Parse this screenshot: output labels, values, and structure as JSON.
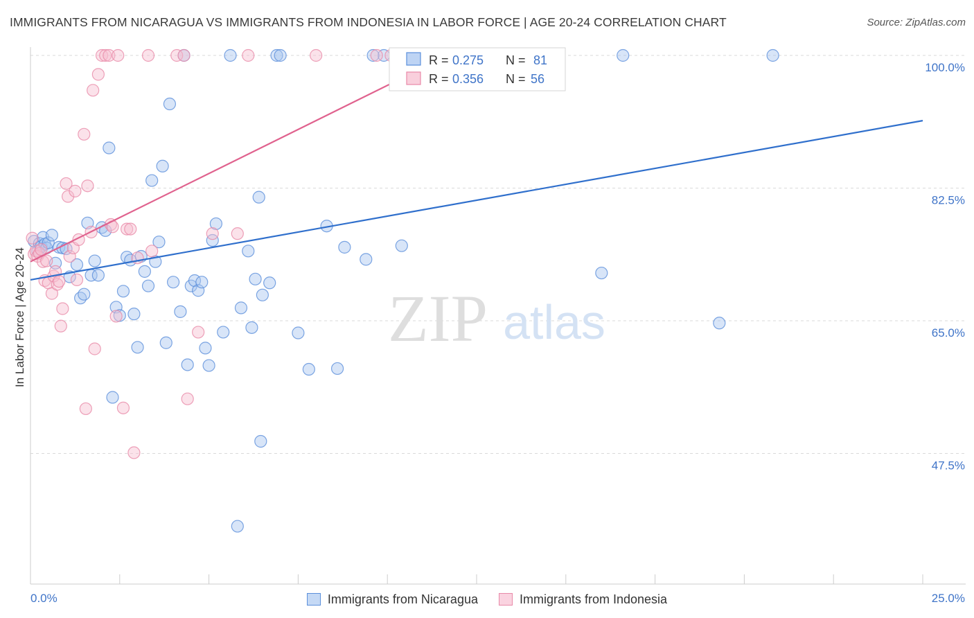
{
  "header": {
    "title": "IMMIGRANTS FROM NICARAGUA VS IMMIGRANTS FROM INDONESIA IN LABOR FORCE | AGE 20-24 CORRELATION CHART",
    "source": "Source: ZipAtlas.com"
  },
  "watermark": {
    "zip": "ZIP",
    "atlas": "atlas"
  },
  "legend": {
    "r_label": "R =",
    "n_label": "N =",
    "entries": [
      {
        "r": "0.275",
        "n": "81"
      },
      {
        "r": "0.356",
        "n": "56"
      }
    ]
  },
  "colors": {
    "series_blue_fill": "#a8c6f0",
    "series_blue_stroke": "#5b8fdb",
    "series_blue_line": "#2f6fcc",
    "series_pink_fill": "#f7bfd0",
    "series_pink_stroke": "#e889a8",
    "series_pink_line": "#e0628e",
    "tick_label": "#3f74c8",
    "grid": "#d9d9d9"
  },
  "chart_data": {
    "type": "scatter",
    "title": "IMMIGRANTS FROM NICARAGUA VS IMMIGRANTS FROM INDONESIA IN LABOR FORCE | AGE 20-24 CORRELATION CHART",
    "ylabel": "In Labor Force | Age 20-24",
    "xlabel": "",
    "xlim": [
      0,
      25
    ],
    "ylim": [
      34,
      102
    ],
    "x_tick_labels": [
      "0.0%",
      "25.0%"
    ],
    "y_ticks": [
      100.0,
      82.5,
      65.0,
      47.5
    ],
    "y_tick_labels": [
      "100.0%",
      "82.5%",
      "65.0%",
      "47.5%"
    ],
    "grid": true,
    "series": [
      {
        "name": "Immigrants from Nicaragua",
        "color": "blue",
        "r": 0.275,
        "n": 81,
        "trend": {
          "x": [
            0,
            25
          ],
          "y": [
            70.4,
            91.4
          ]
        },
        "points": [
          [
            0.1,
            75.5
          ],
          [
            0.2,
            74.2
          ],
          [
            0.25,
            75.2
          ],
          [
            0.3,
            74.8
          ],
          [
            0.35,
            76.0
          ],
          [
            0.4,
            75.1
          ],
          [
            0.45,
            74.6
          ],
          [
            0.5,
            75.3
          ],
          [
            0.6,
            76.3
          ],
          [
            0.7,
            72.6
          ],
          [
            0.8,
            74.7
          ],
          [
            0.9,
            74.6
          ],
          [
            1.0,
            74.5
          ],
          [
            1.1,
            70.8
          ],
          [
            1.3,
            72.4
          ],
          [
            1.4,
            68.0
          ],
          [
            1.5,
            68.5
          ],
          [
            1.6,
            77.9
          ],
          [
            1.7,
            71.0
          ],
          [
            1.8,
            72.9
          ],
          [
            1.9,
            71.0
          ],
          [
            2.0,
            77.3
          ],
          [
            2.1,
            76.9
          ],
          [
            2.2,
            87.8
          ],
          [
            2.3,
            54.9
          ],
          [
            2.4,
            66.8
          ],
          [
            2.5,
            65.7
          ],
          [
            2.6,
            68.9
          ],
          [
            2.7,
            73.4
          ],
          [
            2.8,
            73.0
          ],
          [
            2.9,
            65.9
          ],
          [
            3.0,
            61.5
          ],
          [
            3.1,
            73.5
          ],
          [
            3.2,
            71.5
          ],
          [
            3.3,
            69.6
          ],
          [
            3.4,
            83.5
          ],
          [
            3.5,
            72.8
          ],
          [
            3.6,
            75.4
          ],
          [
            3.7,
            85.4
          ],
          [
            3.8,
            62.1
          ],
          [
            3.9,
            93.6
          ],
          [
            4.0,
            70.1
          ],
          [
            4.2,
            66.2
          ],
          [
            4.3,
            100.0
          ],
          [
            4.4,
            59.2
          ],
          [
            4.5,
            69.6
          ],
          [
            4.6,
            70.3
          ],
          [
            4.7,
            69.0
          ],
          [
            4.8,
            70.1
          ],
          [
            4.9,
            61.4
          ],
          [
            5.0,
            59.1
          ],
          [
            5.1,
            75.6
          ],
          [
            5.2,
            77.8
          ],
          [
            5.4,
            63.5
          ],
          [
            5.6,
            100.0
          ],
          [
            5.8,
            37.9
          ],
          [
            5.9,
            66.7
          ],
          [
            6.1,
            74.2
          ],
          [
            6.2,
            64.1
          ],
          [
            6.3,
            70.5
          ],
          [
            6.4,
            81.3
          ],
          [
            6.5,
            68.4
          ],
          [
            6.7,
            70.0
          ],
          [
            6.9,
            100.0
          ],
          [
            7.0,
            100.0
          ],
          [
            7.5,
            63.4
          ],
          [
            7.8,
            58.6
          ],
          [
            8.3,
            77.5
          ],
          [
            8.6,
            58.7
          ],
          [
            8.8,
            74.7
          ],
          [
            9.4,
            73.1
          ],
          [
            9.9,
            100.0
          ],
          [
            10.4,
            74.9
          ],
          [
            10.6,
            100.0
          ],
          [
            16.0,
            71.3
          ],
          [
            16.6,
            100.0
          ],
          [
            19.3,
            64.7
          ],
          [
            20.8,
            100.0
          ],
          [
            9.6,
            100.0
          ],
          [
            6.45,
            49.1
          ],
          [
            10.3,
            100.0
          ]
        ]
      },
      {
        "name": "Immigrants from Indonesia",
        "color": "pink",
        "r": 0.356,
        "n": 56,
        "trend": {
          "x": [
            0,
            11.7
          ],
          "y": [
            72.8,
            100.0
          ]
        },
        "points": [
          [
            0.05,
            75.9
          ],
          [
            0.1,
            73.8
          ],
          [
            0.15,
            74.2
          ],
          [
            0.2,
            73.5
          ],
          [
            0.25,
            73.9
          ],
          [
            0.3,
            74.4
          ],
          [
            0.35,
            72.8
          ],
          [
            0.4,
            70.3
          ],
          [
            0.45,
            72.9
          ],
          [
            0.5,
            70.0
          ],
          [
            0.6,
            68.6
          ],
          [
            0.65,
            70.9
          ],
          [
            0.7,
            71.5
          ],
          [
            0.75,
            69.8
          ],
          [
            0.8,
            70.2
          ],
          [
            0.85,
            64.3
          ],
          [
            0.9,
            66.6
          ],
          [
            1.0,
            83.1
          ],
          [
            1.05,
            81.4
          ],
          [
            1.1,
            73.5
          ],
          [
            1.2,
            74.6
          ],
          [
            1.25,
            82.1
          ],
          [
            1.3,
            70.4
          ],
          [
            1.35,
            75.7
          ],
          [
            1.5,
            89.6
          ],
          [
            1.55,
            53.4
          ],
          [
            1.6,
            82.8
          ],
          [
            1.7,
            76.7
          ],
          [
            1.75,
            95.4
          ],
          [
            1.8,
            61.3
          ],
          [
            1.9,
            97.5
          ],
          [
            2.0,
            100.0
          ],
          [
            2.1,
            100.0
          ],
          [
            2.2,
            100.0
          ],
          [
            2.25,
            77.7
          ],
          [
            2.3,
            77.4
          ],
          [
            2.4,
            65.6
          ],
          [
            2.45,
            100.0
          ],
          [
            2.6,
            53.5
          ],
          [
            2.7,
            77.1
          ],
          [
            2.8,
            77.1
          ],
          [
            2.9,
            47.6
          ],
          [
            3.0,
            73.3
          ],
          [
            3.3,
            100.0
          ],
          [
            3.4,
            74.2
          ],
          [
            4.1,
            100.0
          ],
          [
            4.3,
            100.0
          ],
          [
            4.4,
            54.7
          ],
          [
            4.7,
            63.5
          ],
          [
            5.1,
            76.5
          ],
          [
            5.8,
            76.5
          ],
          [
            6.1,
            100.0
          ],
          [
            8.0,
            100.0
          ],
          [
            9.7,
            100.0
          ],
          [
            10.1,
            100.0
          ],
          [
            11.7,
            100.0
          ]
        ]
      }
    ]
  }
}
